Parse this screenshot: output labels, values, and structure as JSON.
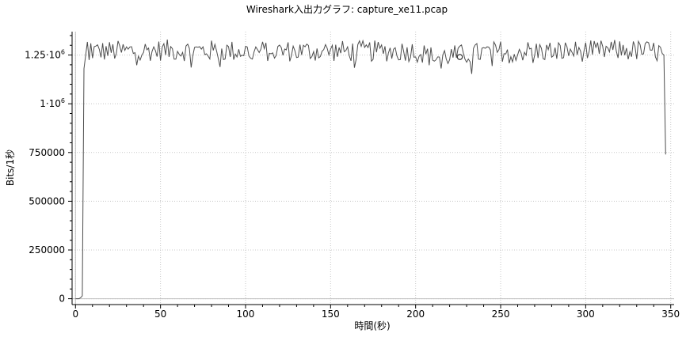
{
  "window": {
    "title": "Wireshark入出力グラフ: capture_xe11.pcap"
  },
  "chart_data": {
    "type": "line",
    "title": "Wireshark入出力グラフ: capture_xe11.pcap",
    "xlabel": "時間(秒)",
    "ylabel": "Bits/1秒",
    "xlim": [
      -2,
      352
    ],
    "ylim": [
      -30000,
      1370000
    ],
    "grid": true,
    "x_ticks": [
      0,
      50,
      100,
      150,
      200,
      250,
      300,
      350
    ],
    "x_tick_labels": [
      "0",
      "50",
      "100",
      "150",
      "200",
      "250",
      "300",
      "350"
    ],
    "y_ticks": [
      0,
      250000,
      500000,
      750000,
      1000000,
      1250000
    ],
    "y_tick_labels": [
      {
        "text": "0"
      },
      {
        "text": "250000"
      },
      {
        "text": "500000"
      },
      {
        "text": "750000"
      },
      {
        "base": "1·10",
        "sup": "6"
      },
      {
        "base": "1.25·10",
        "sup": "6"
      }
    ],
    "series": [
      {
        "color": "#4d4d4d",
        "points": [
          [
            0,
            0
          ],
          [
            1,
            0
          ],
          [
            2,
            0
          ],
          [
            3,
            5000
          ],
          [
            4,
            15000
          ],
          [
            5,
            1180000
          ],
          [
            6,
            1250000
          ],
          [
            7,
            1300000
          ],
          [
            8,
            1210000
          ],
          [
            9,
            1290000
          ],
          [
            10,
            1270000
          ],
          [
            15,
            1270000
          ],
          [
            20,
            1270000
          ],
          [
            30,
            1270000
          ],
          [
            50,
            1275000
          ],
          [
            100,
            1270000
          ],
          [
            150,
            1270000
          ],
          [
            200,
            1270000
          ],
          [
            210,
            1240000
          ],
          [
            226,
            1250000
          ],
          [
            250,
            1270000
          ],
          [
            300,
            1270000
          ],
          [
            320,
            1275000
          ],
          [
            340,
            1270000
          ],
          [
            344,
            1265000
          ],
          [
            345,
            1258000
          ],
          [
            346,
            1250000
          ],
          [
            347,
            740000
          ]
        ],
        "noise_amplitude": 55000,
        "noise_range": [
          6,
          345
        ]
      }
    ],
    "marker": {
      "x": 226,
      "y": 1240000,
      "shape": "circle"
    }
  }
}
